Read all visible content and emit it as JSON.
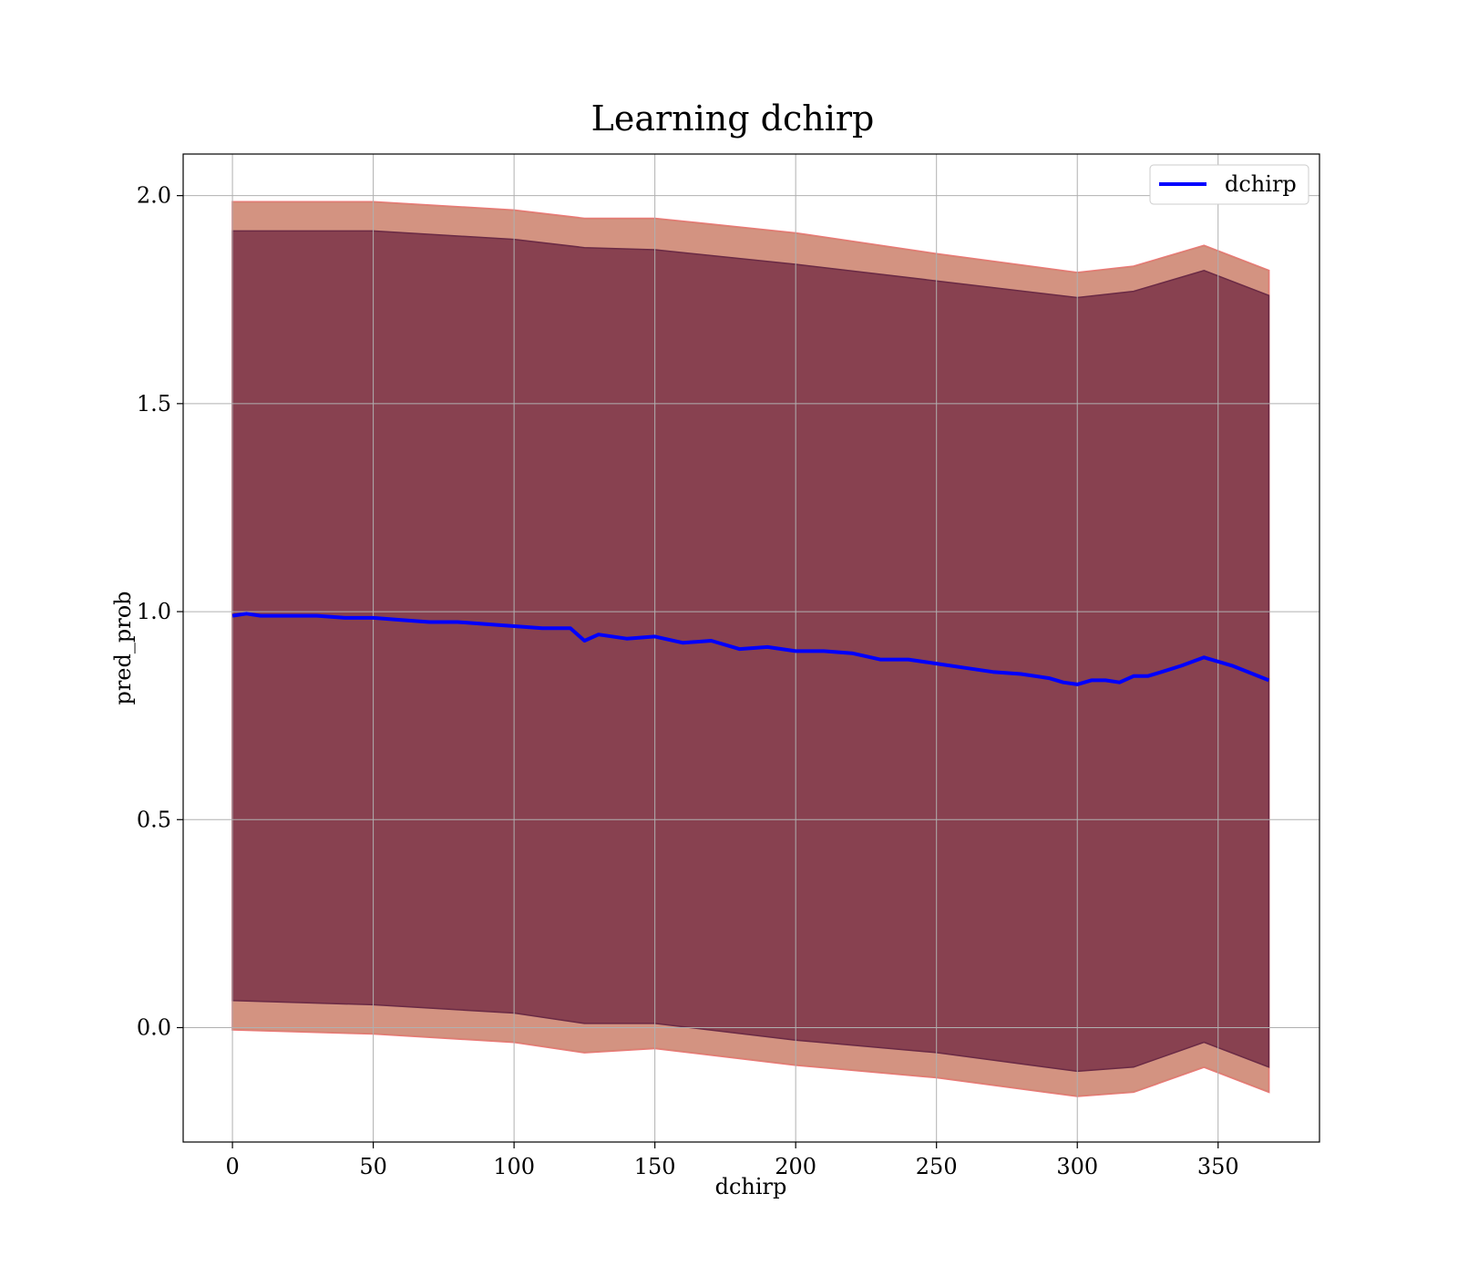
{
  "chart_data": {
    "type": "line",
    "title": "Learning dchirp",
    "xlabel": "dchirp",
    "ylabel": "pred_prob",
    "xlim": [
      -17.5,
      386
    ],
    "ylim": [
      -0.275,
      2.1
    ],
    "xticks": [
      0,
      50,
      100,
      150,
      200,
      250,
      300,
      350
    ],
    "xtick_labels": [
      "0",
      "50",
      "100",
      "150",
      "200",
      "250",
      "300",
      "350"
    ],
    "yticks": [
      0.0,
      0.5,
      1.0,
      1.5,
      2.0
    ],
    "ytick_labels": [
      "0.0",
      "0.5",
      "1.0",
      "1.5",
      "2.0"
    ],
    "grid": true,
    "legend": {
      "position": "top-right",
      "entries": [
        "dchirp"
      ]
    },
    "colors": {
      "line": "#0000ff",
      "outer_band": "#e07070",
      "inner_band": "#7a3348",
      "overlap_band": "#c98a72"
    },
    "series": [
      {
        "name": "dchirp",
        "x": [
          0,
          5,
          10,
          20,
          30,
          40,
          50,
          60,
          70,
          80,
          90,
          100,
          110,
          120,
          125,
          130,
          140,
          150,
          160,
          170,
          180,
          190,
          200,
          210,
          220,
          230,
          240,
          250,
          260,
          270,
          280,
          290,
          295,
          300,
          305,
          310,
          315,
          320,
          325,
          330,
          337,
          345,
          355,
          368
        ],
        "y": [
          0.99,
          0.995,
          0.99,
          0.99,
          0.99,
          0.985,
          0.985,
          0.98,
          0.975,
          0.975,
          0.97,
          0.965,
          0.96,
          0.96,
          0.93,
          0.945,
          0.935,
          0.94,
          0.925,
          0.93,
          0.91,
          0.915,
          0.905,
          0.905,
          0.9,
          0.885,
          0.885,
          0.875,
          0.865,
          0.855,
          0.85,
          0.84,
          0.83,
          0.825,
          0.835,
          0.835,
          0.83,
          0.845,
          0.845,
          0.855,
          0.87,
          0.89,
          0.87,
          0.835
        ]
      }
    ],
    "bands": [
      {
        "role": "outer",
        "x": [
          0,
          50,
          100,
          125,
          150,
          200,
          250,
          300,
          320,
          345,
          368
        ],
        "upper": [
          1.985,
          1.985,
          1.965,
          1.945,
          1.945,
          1.91,
          1.86,
          1.815,
          1.83,
          1.88,
          1.82
        ],
        "lower": [
          -0.005,
          -0.015,
          -0.035,
          -0.06,
          -0.05,
          -0.09,
          -0.12,
          -0.165,
          -0.155,
          -0.095,
          -0.155
        ]
      },
      {
        "role": "inner",
        "x": [
          0,
          50,
          100,
          125,
          150,
          200,
          250,
          300,
          320,
          345,
          368
        ],
        "upper": [
          1.915,
          1.915,
          1.895,
          1.875,
          1.87,
          1.835,
          1.795,
          1.755,
          1.77,
          1.82,
          1.76
        ],
        "lower": [
          0.065,
          0.055,
          0.035,
          0.01,
          0.01,
          -0.03,
          -0.06,
          -0.105,
          -0.095,
          -0.035,
          -0.095
        ]
      }
    ]
  }
}
